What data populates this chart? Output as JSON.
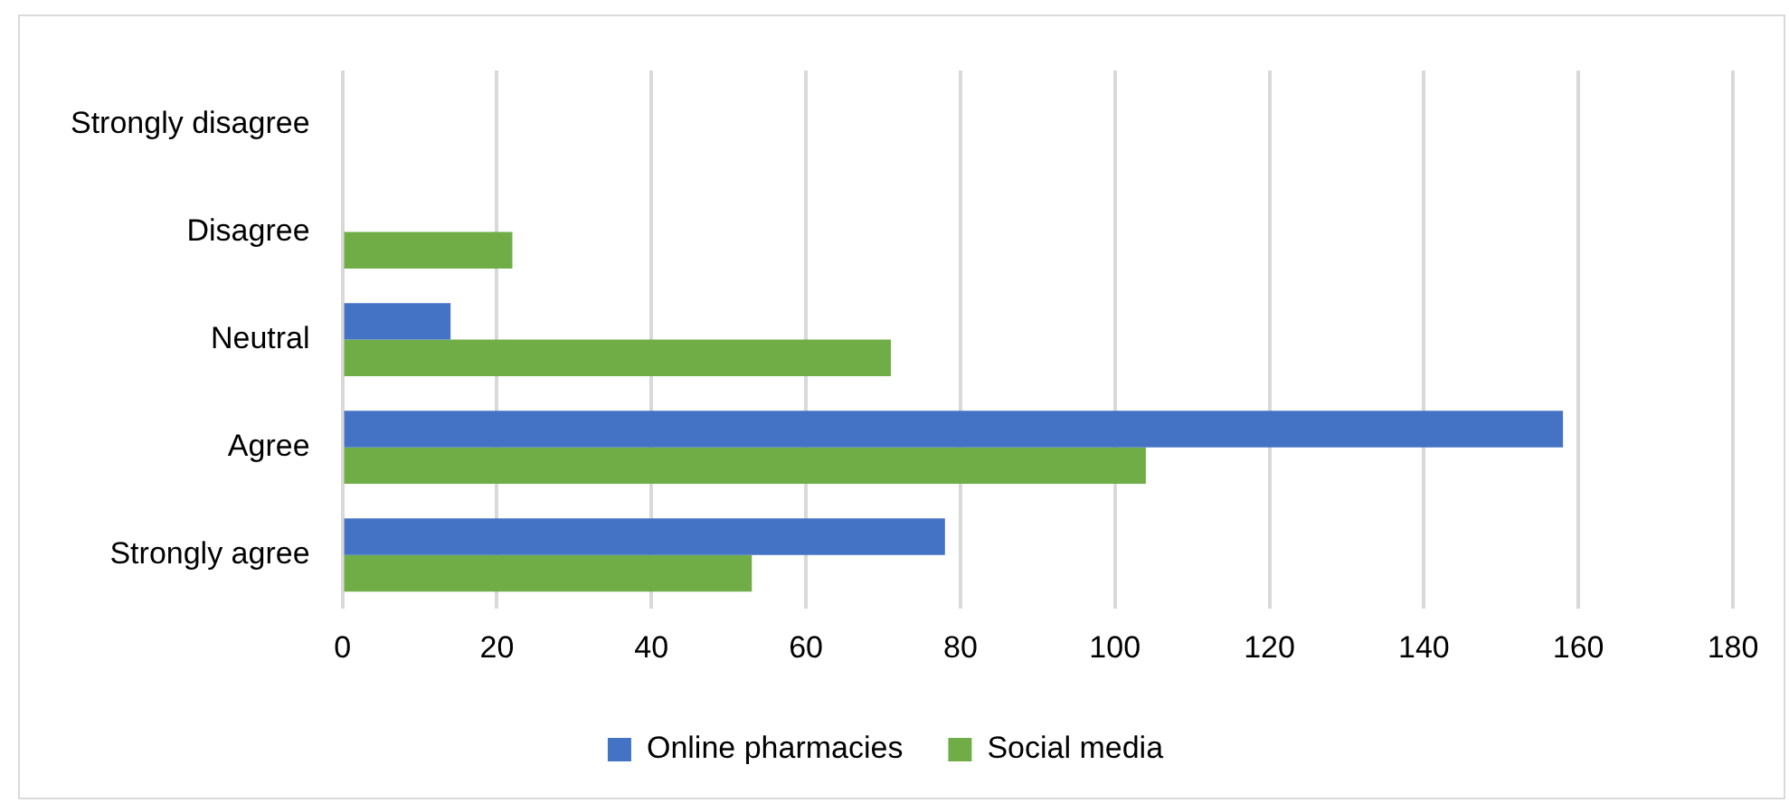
{
  "chart_data": {
    "type": "bar",
    "orientation": "horizontal",
    "categories": [
      "Strongly disagree",
      "Disagree",
      "Neutral",
      "Agree",
      "Strongly agree"
    ],
    "series": [
      {
        "name": "Online pharmacies",
        "color": "#4472c4",
        "values": [
          0,
          0,
          14,
          158,
          78
        ]
      },
      {
        "name": "Social media",
        "color": "#70ad47",
        "values": [
          0,
          22,
          71,
          104,
          53
        ]
      }
    ],
    "xlim": [
      0,
      180
    ],
    "xticks": [
      0,
      20,
      40,
      60,
      80,
      100,
      120,
      140,
      160,
      180
    ],
    "grid": "x",
    "legend": "bottom"
  }
}
